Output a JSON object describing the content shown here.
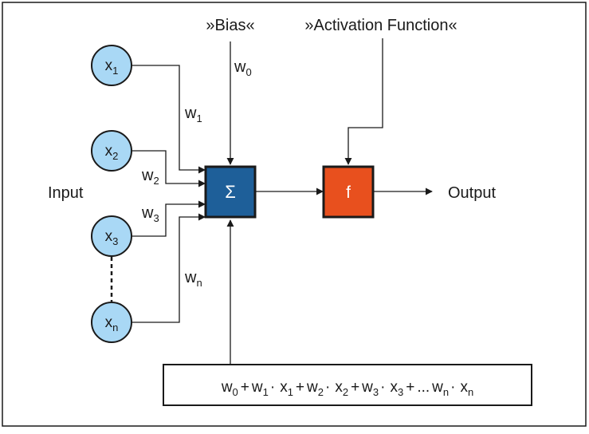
{
  "diagram": {
    "bias_label": "»Bias«",
    "activation_label": "»Activation Function«",
    "input_label": "Input",
    "output_label": "Output",
    "sum_symbol": "Σ",
    "activation_symbol": "f",
    "colors": {
      "input_node_fill": "#a9d8f5",
      "sum_box_fill": "#1e5f99",
      "activation_box_fill": "#e8501e",
      "line": "#1a1a1a"
    },
    "inputs": [
      {
        "var": "x",
        "sub": "1"
      },
      {
        "var": "x",
        "sub": "2"
      },
      {
        "var": "x",
        "sub": "3"
      },
      {
        "var": "x",
        "sub": "n"
      }
    ],
    "weights": [
      {
        "var": "w",
        "sub": "0"
      },
      {
        "var": "w",
        "sub": "1"
      },
      {
        "var": "w",
        "sub": "2"
      },
      {
        "var": "w",
        "sub": "3"
      },
      {
        "var": "w",
        "sub": "n"
      }
    ],
    "formula": {
      "w0": "w",
      "w0_sub": "0",
      "w1": "w",
      "w1_sub": "1",
      "x1": "x",
      "x1_sub": "1",
      "w2": "w",
      "w2_sub": "2",
      "x2": "x",
      "x2_sub": "2",
      "w3": "w",
      "w3_sub": "3",
      "x3": "x",
      "x3_sub": "3",
      "wn": "w",
      "wn_sub": "n",
      "xn": "x",
      "xn_sub": "n",
      "plus": "+",
      "dot": "·",
      "ellipsis": "..."
    }
  }
}
